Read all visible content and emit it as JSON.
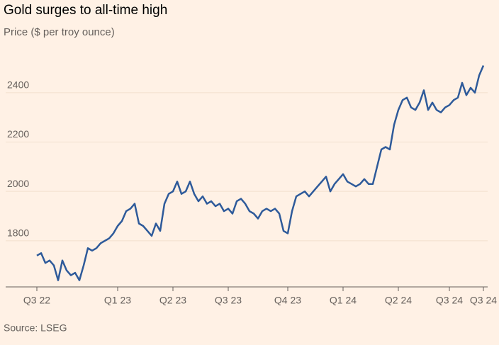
{
  "chart_data": {
    "type": "line",
    "title": "Gold surges to all-time high",
    "subtitle": "Price ($ per troy ounce)",
    "source": "Source: LSEG",
    "color": "#2e5a9a",
    "grid": true,
    "categories": [
      "Q3 22",
      null,
      null,
      null,
      null,
      null,
      null,
      null,
      null,
      null,
      null,
      null,
      null,
      null,
      null,
      null,
      null,
      null,
      null,
      "Q1 23",
      null,
      null,
      null,
      null,
      null,
      null,
      null,
      null,
      null,
      null,
      null,
      null,
      "Q2 23",
      null,
      null,
      null,
      null,
      null,
      null,
      null,
      null,
      null,
      null,
      null,
      null,
      "Q3 23",
      null,
      null,
      null,
      null,
      null,
      null,
      null,
      null,
      null,
      null,
      null,
      null,
      null,
      "Q4 23",
      null,
      null,
      null,
      null,
      null,
      null,
      null,
      null,
      null,
      null,
      null,
      null,
      "Q1 24",
      null,
      null,
      null,
      null,
      null,
      null,
      null,
      null,
      null,
      null,
      null,
      null,
      "Q2 24",
      null,
      null,
      null,
      null,
      null,
      null,
      null,
      null,
      null,
      null,
      null,
      "Q3 24",
      null,
      null,
      null,
      null,
      null,
      null,
      null,
      "Q3 24"
    ],
    "values": [
      1740,
      1750,
      1710,
      1720,
      1700,
      1640,
      1720,
      1680,
      1660,
      1670,
      1640,
      1700,
      1770,
      1760,
      1770,
      1790,
      1800,
      1810,
      1830,
      1860,
      1880,
      1920,
      1930,
      1950,
      1870,
      1860,
      1840,
      1820,
      1870,
      1840,
      1950,
      1990,
      2000,
      2040,
      1990,
      2000,
      2040,
      1990,
      1960,
      1980,
      1950,
      1960,
      1940,
      1950,
      1920,
      1930,
      1910,
      1960,
      1970,
      1950,
      1920,
      1910,
      1890,
      1920,
      1930,
      1920,
      1930,
      1910,
      1840,
      1830,
      1920,
      1980,
      1990,
      2000,
      1980,
      2000,
      2020,
      2040,
      2060,
      2000,
      2030,
      2050,
      2070,
      2040,
      2030,
      2020,
      2030,
      2050,
      2030,
      2030,
      2100,
      2170,
      2180,
      2170,
      2270,
      2330,
      2370,
      2380,
      2340,
      2330,
      2360,
      2410,
      2330,
      2360,
      2330,
      2320,
      2340,
      2350,
      2370,
      2380,
      2440,
      2390,
      2420,
      2400,
      2470,
      2510
    ],
    "ylim": [
      1613,
      2589
    ],
    "yticks": [
      1800,
      2000,
      2200,
      2400
    ]
  }
}
